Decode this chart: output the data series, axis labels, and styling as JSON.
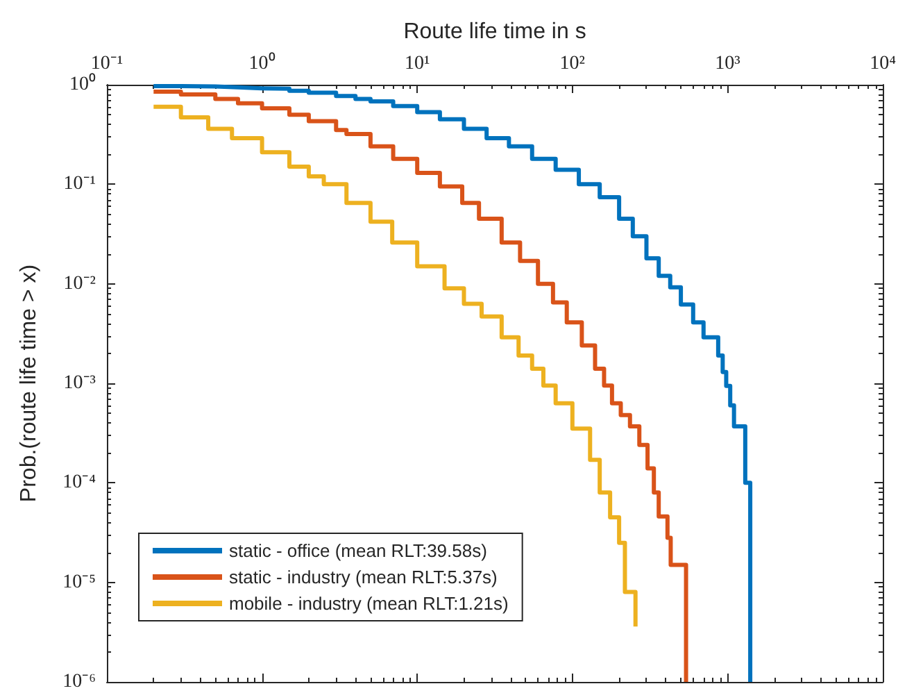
{
  "chart_data": {
    "type": "step",
    "xlabel": "Route life time in s",
    "ylabel": "Prob.(route life time > x)",
    "log": "xy",
    "grid": false,
    "legend": "bottom left",
    "marker": "none",
    "line_style": "solid",
    "xlim": [
      0.1,
      10000
    ],
    "xticks": [
      {
        "value": 0.1,
        "label": "10⁻¹"
      },
      {
        "value": 1,
        "label": "10⁰"
      },
      {
        "value": 10,
        "label": "10¹"
      },
      {
        "value": 100,
        "label": "10²"
      },
      {
        "value": 1000,
        "label": "10³"
      },
      {
        "value": 10000,
        "label": "10⁴"
      }
    ],
    "ylim": [
      1e-06,
      1
    ],
    "yticks": [
      {
        "value": 1e-06,
        "label": "10⁻⁶"
      },
      {
        "value": 1e-05,
        "label": "10⁻⁵"
      },
      {
        "value": 0.0001,
        "label": "10⁻⁴"
      },
      {
        "value": 0.001,
        "label": "10⁻³"
      },
      {
        "value": 0.01,
        "label": "10⁻²"
      },
      {
        "value": 0.1,
        "label": "10⁻¹"
      },
      {
        "value": 1,
        "label": "10⁰"
      }
    ],
    "series": [
      {
        "name": "static - office (mean RLT:39.58s)",
        "color": "#0072bd",
        "x": [
          0.2,
          0.3,
          0.5,
          0.7,
          1,
          1.5,
          2,
          3,
          4,
          5,
          7,
          10,
          14,
          20,
          28,
          39,
          55,
          78,
          110,
          150,
          200,
          245,
          300,
          360,
          427,
          500,
          600,
          700,
          870,
          930,
          980,
          1040,
          1100,
          1300,
          1300,
          1400
        ],
        "values": [
          0.97,
          0.96,
          0.94,
          0.92,
          0.91,
          0.87,
          0.83,
          0.77,
          0.72,
          0.68,
          0.61,
          0.53,
          0.45,
          0.36,
          0.29,
          0.24,
          0.18,
          0.14,
          0.1,
          0.074,
          0.045,
          0.03,
          0.018,
          0.012,
          0.0092,
          0.0062,
          0.0041,
          0.0029,
          0.0019,
          0.0013,
          0.00094,
          0.0006,
          0.00037,
          0.00032,
          0.0001,
          1e-06
        ]
      },
      {
        "name": "static - industry (mean RLT:5.37s)",
        "color": "#d95319",
        "x": [
          0.2,
          0.3,
          0.5,
          0.7,
          1,
          1.5,
          2,
          3,
          3.5,
          5,
          7,
          10,
          14,
          19.5,
          25,
          35,
          46,
          60,
          75,
          92,
          115,
          140,
          160,
          180,
          205,
          235,
          270,
          305,
          335,
          360,
          410,
          430,
          540
        ],
        "values": [
          0.85,
          0.8,
          0.72,
          0.65,
          0.58,
          0.5,
          0.43,
          0.35,
          0.32,
          0.24,
          0.18,
          0.13,
          0.095,
          0.065,
          0.045,
          0.026,
          0.017,
          0.01,
          0.0065,
          0.0041,
          0.0024,
          0.0014,
          0.00095,
          0.00063,
          0.00048,
          0.00037,
          0.00024,
          0.00014,
          8e-05,
          4.6e-05,
          2.8e-05,
          1.5e-05,
          1e-06
        ]
      },
      {
        "name": "mobile - industry (mean RLT:1.21s)",
        "color": "#edb120",
        "x": [
          0.2,
          0.3,
          0.45,
          0.64,
          1,
          1.5,
          2,
          2.5,
          3.5,
          5,
          6.9,
          10,
          15,
          20,
          26,
          35,
          45,
          55,
          65,
          78,
          100,
          130,
          150,
          175,
          200,
          218,
          255
        ],
        "values": [
          0.6,
          0.47,
          0.36,
          0.29,
          0.21,
          0.15,
          0.12,
          0.1,
          0.065,
          0.042,
          0.026,
          0.015,
          0.009,
          0.0063,
          0.0047,
          0.0029,
          0.0019,
          0.0014,
          0.00095,
          0.00063,
          0.00035,
          0.00017,
          8e-05,
          4.5e-05,
          2.5e-05,
          8e-06,
          3.6e-06
        ]
      }
    ]
  }
}
